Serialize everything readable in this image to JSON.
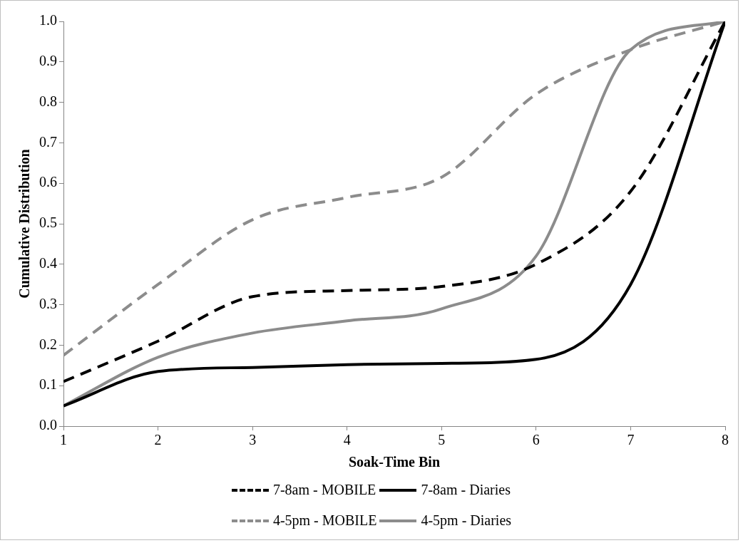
{
  "chart_data": {
    "type": "line",
    "xlabel": "Soak-Time Bin",
    "ylabel": "Cumulative Distribution",
    "x": [
      1,
      2,
      3,
      4,
      5,
      6,
      7,
      8
    ],
    "xlim": [
      1,
      8
    ],
    "xticks": [
      1,
      2,
      3,
      4,
      5,
      6,
      7,
      8
    ],
    "ylim": [
      0,
      1
    ],
    "yticks": [
      {
        "value": 0,
        "label": "0.0"
      },
      {
        "value": 0.1,
        "label": "0.1"
      },
      {
        "value": 0.2,
        "label": "0.2"
      },
      {
        "value": 0.3,
        "label": "0.3"
      },
      {
        "value": 0.4,
        "label": "0.4"
      },
      {
        "value": 0.5,
        "label": "0.5"
      },
      {
        "value": 0.6,
        "label": "0.6"
      },
      {
        "value": 0.7,
        "label": "0.7"
      },
      {
        "value": 0.8,
        "label": "0.8"
      },
      {
        "value": 0.9,
        "label": "0.9"
      },
      {
        "value": 1,
        "label": "1.0"
      }
    ],
    "grid": false,
    "legend": "bottom",
    "marker": "none",
    "series": [
      {
        "name": "7-8am - MOBILE",
        "color": "#000000",
        "line_style": "dashed",
        "values": [
          0.11,
          0.21,
          0.32,
          0.335,
          0.345,
          0.4,
          0.58,
          1.0
        ]
      },
      {
        "name": "7-8am - Diaries",
        "color": "#000000",
        "line_style": "solid",
        "values": [
          0.05,
          0.135,
          0.145,
          0.152,
          0.155,
          0.165,
          0.35,
          1.0
        ]
      },
      {
        "name": "4-5pm - MOBILE",
        "color": "#8c8c8c",
        "line_style": "dashed",
        "values": [
          0.175,
          0.35,
          0.51,
          0.565,
          0.615,
          0.82,
          0.93,
          1.0
        ]
      },
      {
        "name": "4-5pm - Diaries",
        "color": "#8c8c8c",
        "line_style": "solid",
        "values": [
          0.05,
          0.17,
          0.23,
          0.26,
          0.29,
          0.42,
          0.93,
          1.0
        ]
      }
    ]
  }
}
